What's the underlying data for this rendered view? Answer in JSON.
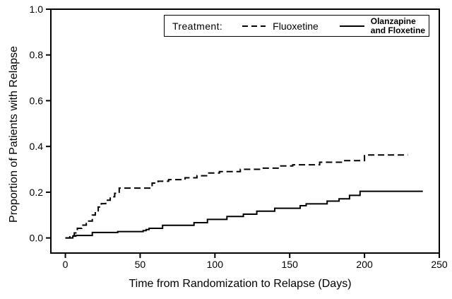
{
  "legend": {
    "title": "Treatment:",
    "fluoxetine_label": "Fluoxetine",
    "olanzapine_line1": "Olanzapine",
    "olanzapine_line2": "and Floxetine"
  },
  "chart_data": {
    "type": "line",
    "subtype": "kaplan-meier-step",
    "title": "",
    "xlabel": "Time from Randomization to Relapse (Days)",
    "ylabel": "Proportion of Patients with Relapse",
    "xlim": [
      -9.7,
      250
    ],
    "ylim": [
      -0.066,
      1.0
    ],
    "xticks": [
      0,
      50,
      100,
      150,
      200,
      250
    ],
    "xtick_labels": [
      "0",
      "50",
      "100",
      "150",
      "200",
      "250"
    ],
    "yticks": [
      0.0,
      0.2,
      0.4,
      0.6,
      0.8,
      1.0
    ],
    "ytick_labels": [
      "0.0",
      "0.2",
      "0.4",
      "0.6",
      "0.8",
      "1.0"
    ],
    "grid": false,
    "legend_title": "Treatment:",
    "legend_position": "top-center-inside",
    "line_color": "#000000",
    "background_color": "#ffffff",
    "series": [
      {
        "name": "Fluoxetine",
        "id": "fluoxetine",
        "style": "dashed",
        "points": [
          [
            0,
            0
          ],
          [
            3,
            0.01
          ],
          [
            6,
            0.022
          ],
          [
            8,
            0.042
          ],
          [
            11,
            0.056
          ],
          [
            14,
            0.074
          ],
          [
            18,
            0.1
          ],
          [
            20,
            0.115
          ],
          [
            22,
            0.135
          ],
          [
            24,
            0.15
          ],
          [
            27,
            0.165
          ],
          [
            30,
            0.18
          ],
          [
            33,
            0.195
          ],
          [
            36,
            0.218
          ],
          [
            58,
            0.24
          ],
          [
            62,
            0.248
          ],
          [
            69,
            0.255
          ],
          [
            80,
            0.263
          ],
          [
            88,
            0.272
          ],
          [
            95,
            0.284
          ],
          [
            103,
            0.29
          ],
          [
            117,
            0.3
          ],
          [
            131,
            0.305
          ],
          [
            143,
            0.315
          ],
          [
            152,
            0.32
          ],
          [
            170,
            0.331
          ],
          [
            186,
            0.338
          ],
          [
            200,
            0.363
          ],
          [
            229,
            0.363
          ]
        ]
      },
      {
        "name": "Olanzapine and Floxetine",
        "id": "olanzapine-and-floxetine",
        "style": "solid",
        "points": [
          [
            0,
            0
          ],
          [
            5,
            0.008
          ],
          [
            7,
            0.011
          ],
          [
            18,
            0.024
          ],
          [
            35,
            0.028
          ],
          [
            52,
            0.032
          ],
          [
            54,
            0.037
          ],
          [
            56,
            0.042
          ],
          [
            65,
            0.055
          ],
          [
            86,
            0.067
          ],
          [
            95,
            0.081
          ],
          [
            108,
            0.094
          ],
          [
            119,
            0.104
          ],
          [
            128,
            0.117
          ],
          [
            140,
            0.13
          ],
          [
            157,
            0.141
          ],
          [
            161,
            0.149
          ],
          [
            175,
            0.161
          ],
          [
            183,
            0.171
          ],
          [
            190,
            0.186
          ],
          [
            197,
            0.204
          ],
          [
            239,
            0.204
          ]
        ]
      }
    ]
  }
}
